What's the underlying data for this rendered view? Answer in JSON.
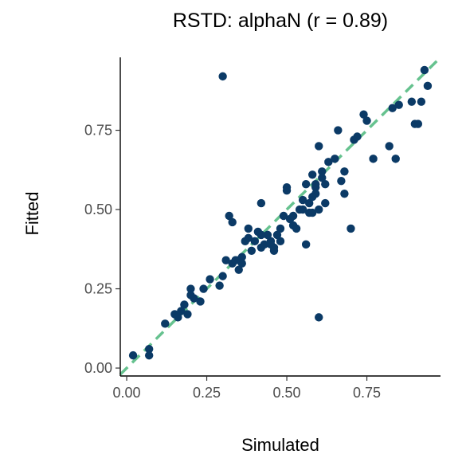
{
  "chart_data": {
    "type": "scatter",
    "title": "RSTD: alphaN (r = 0.89)",
    "xlabel": "Simulated",
    "ylabel": "Fitted",
    "xlim": [
      -0.02,
      0.98
    ],
    "ylim": [
      -0.025,
      0.98
    ],
    "xticks": [
      0.0,
      0.25,
      0.5,
      0.75
    ],
    "yticks": [
      0.0,
      0.25,
      0.5,
      0.75
    ],
    "xtick_labels": [
      "0.00",
      "0.25",
      "0.50",
      "0.75"
    ],
    "ytick_labels": [
      "0.00",
      "0.25",
      "0.50",
      "0.75"
    ],
    "grid": false,
    "legend": "none",
    "reference_line": {
      "type": "identity",
      "style": "dashed",
      "color": "#66c28f"
    },
    "point_color": "#0b3a66",
    "series": [
      {
        "x": [
          0.02,
          0.07,
          0.07,
          0.12,
          0.15,
          0.16,
          0.17,
          0.18,
          0.19,
          0.2,
          0.2,
          0.21,
          0.23,
          0.24,
          0.26,
          0.29,
          0.3,
          0.31,
          0.32,
          0.33,
          0.33,
          0.34,
          0.35,
          0.35,
          0.36,
          0.37,
          0.38,
          0.38,
          0.4,
          0.41,
          0.42,
          0.42,
          0.43,
          0.44,
          0.45,
          0.46,
          0.47,
          0.48,
          0.48,
          0.5,
          0.5,
          0.51,
          0.52,
          0.52,
          0.53,
          0.54,
          0.55,
          0.56,
          0.57,
          0.57,
          0.58,
          0.58,
          0.59,
          0.59,
          0.6,
          0.6,
          0.61,
          0.62,
          0.63,
          0.66,
          0.67,
          0.68,
          0.7,
          0.71,
          0.72,
          0.74,
          0.75,
          0.77,
          0.82,
          0.83,
          0.84,
          0.85,
          0.89,
          0.9,
          0.91,
          0.92,
          0.93,
          0.94,
          0.3,
          0.6,
          0.56,
          0.59,
          0.62,
          0.65,
          0.68,
          0.45,
          0.49,
          0.39,
          0.36,
          0.34,
          0.42,
          0.55,
          0.61,
          0.58,
          0.46
        ],
        "y": [
          0.04,
          0.06,
          0.04,
          0.14,
          0.17,
          0.16,
          0.18,
          0.2,
          0.17,
          0.25,
          0.23,
          0.22,
          0.21,
          0.25,
          0.28,
          0.26,
          0.29,
          0.34,
          0.48,
          0.33,
          0.46,
          0.34,
          0.31,
          0.34,
          0.35,
          0.4,
          0.44,
          0.41,
          0.4,
          0.43,
          0.52,
          0.38,
          0.39,
          0.42,
          0.39,
          0.38,
          0.42,
          0.4,
          0.44,
          0.57,
          0.56,
          0.47,
          0.48,
          0.45,
          0.44,
          0.5,
          0.53,
          0.39,
          0.52,
          0.49,
          0.49,
          0.61,
          0.57,
          0.58,
          0.7,
          0.5,
          0.62,
          0.58,
          0.65,
          0.75,
          0.59,
          0.55,
          0.44,
          0.72,
          0.73,
          0.8,
          0.78,
          0.66,
          0.7,
          0.82,
          0.66,
          0.83,
          0.84,
          0.77,
          0.77,
          0.84,
          0.94,
          0.89,
          0.92,
          0.16,
          0.58,
          0.55,
          0.52,
          0.66,
          0.62,
          0.4,
          0.48,
          0.37,
          0.33,
          0.34,
          0.42,
          0.5,
          0.6,
          0.54,
          0.37
        ]
      }
    ]
  }
}
